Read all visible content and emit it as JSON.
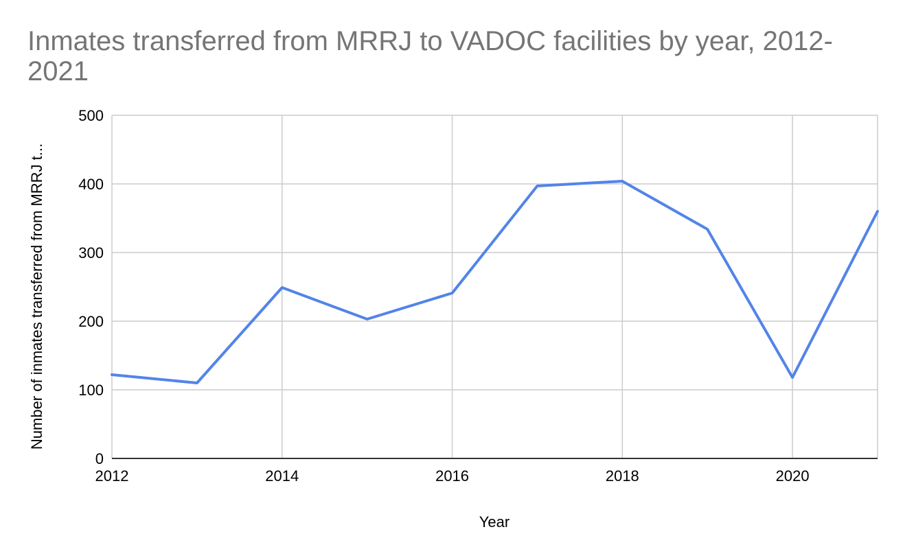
{
  "chart_data": {
    "type": "line",
    "title": "Inmates transferred from MRRJ to VADOC facilities by year, 2012-2021",
    "xlabel": "Year",
    "ylabel": "Number of inmates transferred from MRRJ t...",
    "x": [
      2012,
      2013,
      2014,
      2015,
      2016,
      2017,
      2018,
      2019,
      2020,
      2021
    ],
    "series": [
      {
        "values": [
          122,
          110,
          249,
          203,
          241,
          397,
          404,
          334,
          118,
          360
        ]
      }
    ],
    "xlim": [
      2012,
      2021
    ],
    "ylim": [
      0,
      500
    ],
    "x_ticks": [
      "2012",
      "2014",
      "2016",
      "2018",
      "2020"
    ],
    "y_ticks": [
      "0",
      "100",
      "200",
      "300",
      "400",
      "500"
    ],
    "grid": true,
    "line_color": "#5384e8",
    "grid_color": "#cccccc",
    "axis_color": "#333333",
    "title_color": "#757575"
  }
}
